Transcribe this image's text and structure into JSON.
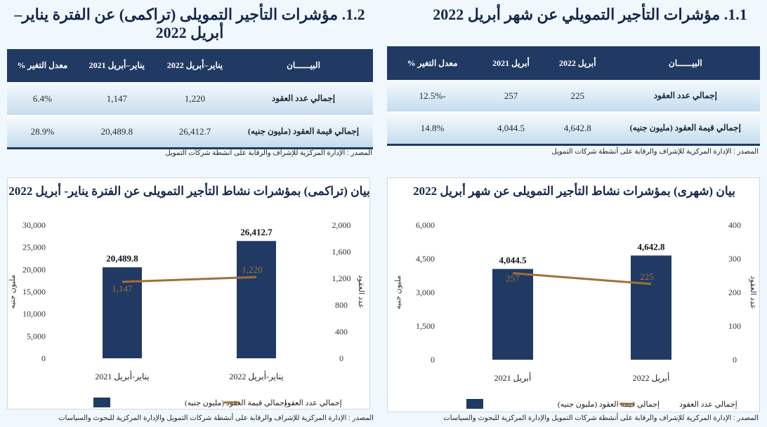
{
  "right_section": {
    "title": "1.1. مؤشرات التأجير التمويلي عن شهر أبريل 2022",
    "table": {
      "headers": [
        "البيــــــان",
        "أبريل 2022",
        "أبريل 2021",
        "معدل التغير %"
      ],
      "rows": [
        [
          "إجمالي عدد العقود",
          "225",
          "257",
          "-12.5%"
        ],
        [
          "إجمالي قيمة العقود (مليون جنيه)",
          "4,642.8",
          "4,044.5",
          "14.8%"
        ]
      ]
    },
    "table_source": "المصدر : الإدارة المركزية للإشراف والرقابة على أنشطة شركات التمويل",
    "chart_source": "المصدر : الإدارة المركزية للإشراف والرقابة على أنشطة شركات التمويل والإدارة المركزية للبحوث والسياسات"
  },
  "left_section": {
    "title": "1.2. مؤشرات التأجير التمويلى (تراكمى) عن الفترة يناير–أبريل 2022",
    "table": {
      "headers": [
        "البيــــــان",
        "يناير–أبريل 2022",
        "يناير–أبريل 2021",
        "معدل التغير %"
      ],
      "rows": [
        [
          "إجمالي عدد العقود",
          "1,220",
          "1,147",
          "6.4%"
        ],
        [
          "إجمالي قيمة العقود (مليون جنيه)",
          "26,412.7",
          "20,489.8",
          "28.9%"
        ]
      ]
    },
    "table_source": "المصدر : الإدارة المركزية للإشراف والرقابة على أنشطة شركات التمويل",
    "chart_source": "المصدر : الإدارة المركزية للإشراف والرقابة على أنشطة شركات التمويل والإدارة المركزية للبحوث والسياسات"
  },
  "colors": {
    "bar": "#213a63",
    "line": "#a0703a"
  },
  "chart_data": [
    {
      "type": "bar+line",
      "title": "بيان (شهرى) بمؤشرات نشاط التأجير التمويلى عن شهر أبريل 2022",
      "categories": [
        "أبريل 2021",
        "أبريل 2022"
      ],
      "series": [
        {
          "name": "إجمالي قيمة العقود (مليون جنيه)",
          "type": "bar",
          "axis": "left",
          "values": [
            4044.5,
            4642.8
          ],
          "labels": [
            "4,044.5",
            "4,642.8"
          ]
        },
        {
          "name": "إجمالي عدد العقود",
          "type": "line",
          "axis": "right",
          "values": [
            257,
            225
          ],
          "labels": [
            "257",
            "225"
          ]
        }
      ],
      "ylabel": "مليون جنيه",
      "y2label": "عدد العقود",
      "ylim": [
        0,
        6000
      ],
      "yticks": [
        "0",
        "1,500",
        "3,000",
        "4,500",
        "6,000"
      ],
      "y2lim": [
        0,
        400
      ],
      "y2ticks": [
        "0",
        "100",
        "200",
        "300",
        "400"
      ],
      "legend": "bottom"
    },
    {
      "type": "bar+line",
      "title": "بيان (تراكمى) بمؤشرات نشاط التأجير التمويلى عن الفترة يناير- أبريل 2022",
      "categories": [
        "يناير-أبريل 2021",
        "يناير-أبريل 2022"
      ],
      "series": [
        {
          "name": "إجمالي قيمة العقود (مليون جنيه)",
          "type": "bar",
          "axis": "left",
          "values": [
            20489.8,
            26412.7
          ],
          "labels": [
            "20,489.8",
            "26,412.7"
          ]
        },
        {
          "name": "إجمالي عدد العقود",
          "type": "line",
          "axis": "right",
          "values": [
            1147,
            1220
          ],
          "labels": [
            "1,147",
            "1,220"
          ]
        }
      ],
      "ylabel": "مليون جنيه",
      "y2label": "عدد العقود",
      "ylim": [
        0,
        30000
      ],
      "yticks": [
        "0",
        "5,000",
        "10,000",
        "15,000",
        "20,000",
        "25,000",
        "30,000"
      ],
      "y2lim": [
        0,
        2000
      ],
      "y2ticks": [
        "0",
        "400",
        "800",
        "1,200",
        "1,600",
        "2,000"
      ],
      "legend": "bottom"
    }
  ]
}
